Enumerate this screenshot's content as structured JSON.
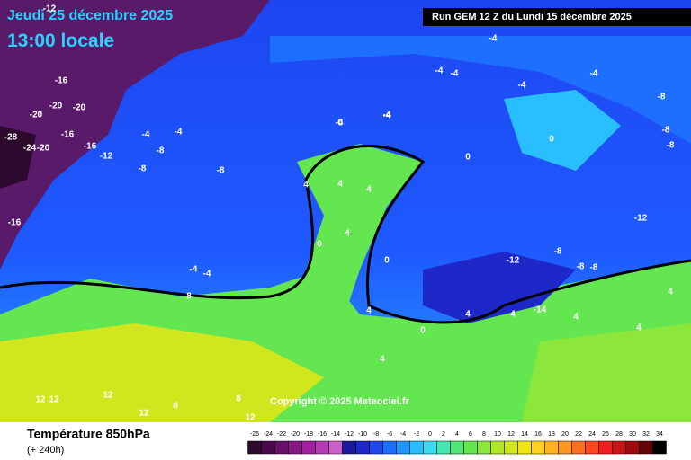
{
  "header": {
    "date": "Jeudi 25 décembre 2025",
    "time": "13:00 locale",
    "run": "Run GEM 12 Z du Lundi 15 décembre 2025"
  },
  "footer": {
    "title": "Température 850hPa",
    "subtitle": "(+ 240h)",
    "copyright": "Copyright © 2025 Meteociel.fr"
  },
  "scale": {
    "ticks": [
      -26,
      -24,
      -22,
      -20,
      -18,
      -16,
      -14,
      -12,
      -10,
      -8,
      -6,
      -4,
      -2,
      0,
      2,
      4,
      6,
      8,
      10,
      12,
      14,
      16,
      18,
      20,
      22,
      24,
      26,
      28,
      30,
      32,
      34
    ],
    "colors": [
      "#2d0a2d",
      "#4a0a4a",
      "#680f68",
      "#861886",
      "#a020a0",
      "#b43cb4",
      "#c860c8",
      "#1a1a9a",
      "#1e28c8",
      "#2046f0",
      "#1e6eff",
      "#1e96ff",
      "#28beff",
      "#3cdcf0",
      "#46e6b4",
      "#50e678",
      "#64e650",
      "#8ce63c",
      "#b4e628",
      "#d2e61e",
      "#f0e614",
      "#ffd21e",
      "#ffb41e",
      "#ff961e",
      "#ff6e1e",
      "#ff461e",
      "#f01e1e",
      "#c81414",
      "#a00a0a",
      "#640505",
      "#000000"
    ]
  },
  "contour_labels": [
    "-12",
    "-16",
    "-20",
    "-20",
    "-20",
    "-28",
    "-24",
    "-20",
    "-16",
    "-16",
    "-16",
    "-12",
    "-8",
    "-4",
    "-4",
    "-8",
    "-8",
    "-4",
    "-4",
    "-4",
    "-4",
    "-4",
    "-4",
    "-8",
    "-8",
    "-12",
    "-8",
    "-12",
    "-8",
    "-8",
    "-8",
    "0",
    "0",
    "4",
    "4",
    "4",
    "4",
    "0",
    "4",
    "4",
    "0",
    "4",
    "4",
    "4",
    "-4",
    "-4",
    "8",
    "8",
    "12",
    "12",
    "12",
    "12",
    "8",
    "12",
    "4",
    "4",
    "0",
    "-14",
    "0",
    "-4",
    "-4"
  ]
}
